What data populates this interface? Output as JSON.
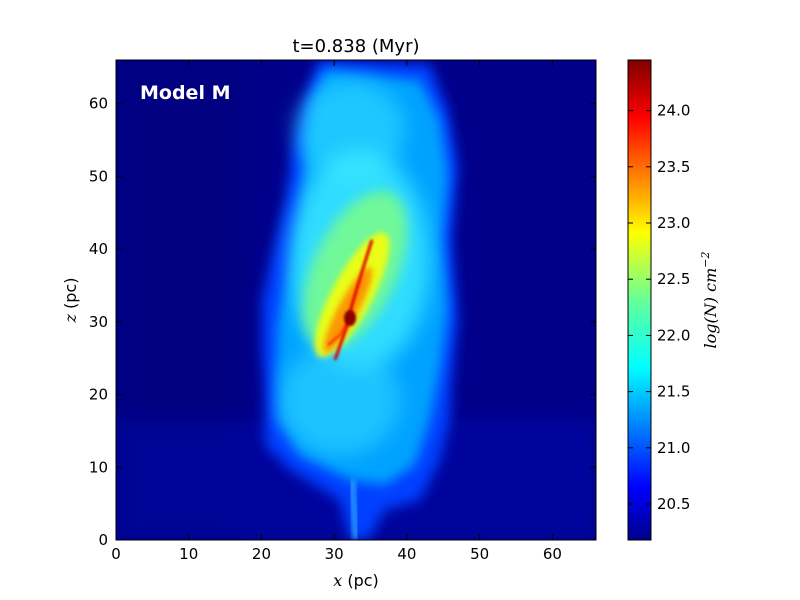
{
  "chart_data": {
    "type": "heatmap",
    "title": "t=0.838 (Myr)",
    "annotation": "Model M",
    "xlabel": {
      "var": "x",
      "unit": "(pc)"
    },
    "ylabel": {
      "var": "z",
      "unit": "(pc)"
    },
    "xlim": [
      0,
      66
    ],
    "ylim": [
      0,
      66
    ],
    "x_ticks": [
      0,
      10,
      20,
      30,
      40,
      50,
      60
    ],
    "y_ticks": [
      0,
      10,
      20,
      30,
      40,
      50,
      60
    ],
    "colorbar": {
      "label": "log(N) cm^-2",
      "label_parts": {
        "base": "log(N) cm",
        "exp": "−2"
      },
      "range": [
        20.18,
        24.45
      ],
      "ticks": [
        "20.5",
        "21.0",
        "21.5",
        "22.0",
        "22.5",
        "23.0",
        "23.5",
        "24.0"
      ],
      "colormap": "jet"
    },
    "features": {
      "cloud_extent_x": [
        18,
        47
      ],
      "cloud_extent_z": [
        1,
        66
      ],
      "dense_filament": {
        "from": [
          29,
          24
        ],
        "to": [
          37,
          42
        ]
      },
      "peak_location": [
        32,
        30
      ],
      "peak_value": 24.3
    },
    "colors": {
      "background": "#00008b",
      "low": "#0000ff",
      "mid": "#00ffff",
      "high": "#ffff00",
      "peak": "#8b0000"
    }
  }
}
